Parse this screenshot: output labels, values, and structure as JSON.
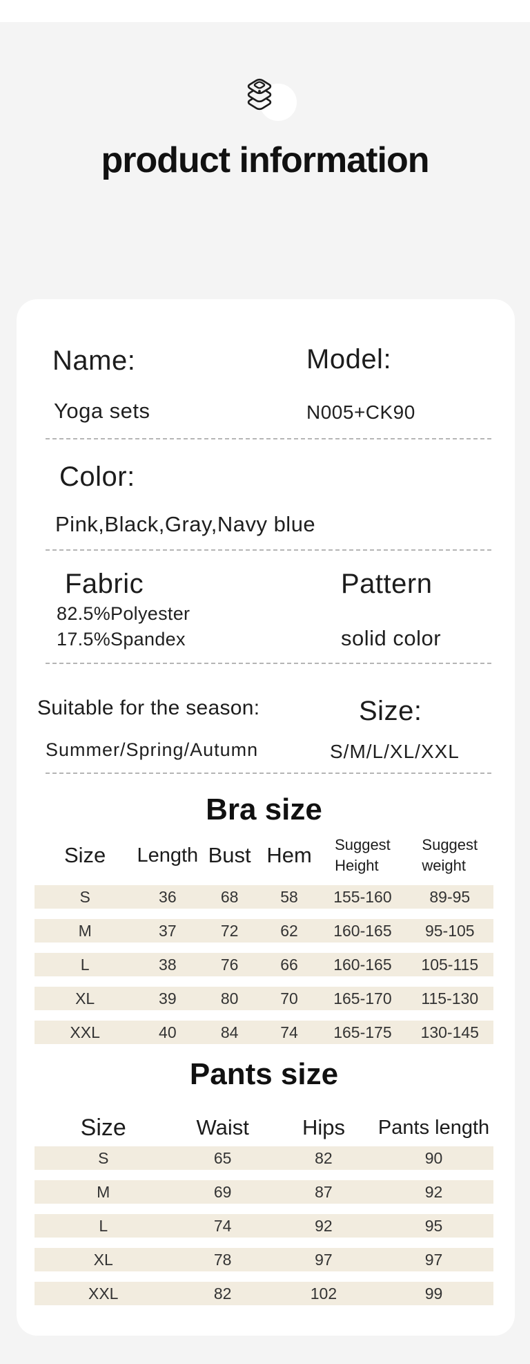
{
  "page": {
    "title": "product information"
  },
  "colors": {
    "background_gray": "#f4f4f4",
    "card_white": "#ffffff",
    "row_band_beige": "#f2ecdf",
    "text_dark": "#202020",
    "divider_gray": "#b5b5b5"
  },
  "info": {
    "name_label": "Name:",
    "name_value": "Yoga sets",
    "model_label": "Model:",
    "model_value": "N005+CK90",
    "color_label": "Color:",
    "color_value": "Pink,Black,Gray,Navy blue",
    "fabric_label": "Fabric",
    "fabric_value_1": "82.5%Polyester",
    "fabric_value_2": "17.5%Spandex",
    "pattern_label": "Pattern",
    "pattern_value": "solid color",
    "season_label": "Suitable for the season:",
    "season_value": "Summer/Spring/Autumn",
    "size_label": "Size:",
    "size_value": "S/M/L/XL/XXL"
  },
  "bra_table": {
    "title": "Bra size",
    "headers": [
      "Size",
      "Length",
      "Bust",
      "Hem",
      "Suggest\nHeight",
      "Suggest\nweight"
    ],
    "rows": [
      [
        "S",
        "36",
        "68",
        "58",
        "155-160",
        "89-95"
      ],
      [
        "M",
        "37",
        "72",
        "62",
        "160-165",
        "95-105"
      ],
      [
        "L",
        "38",
        "76",
        "66",
        "160-165",
        "105-115"
      ],
      [
        "XL",
        "39",
        "80",
        "70",
        "165-170",
        "115-130"
      ],
      [
        "XXL",
        "40",
        "84",
        "74",
        "165-175",
        "130-145"
      ]
    ]
  },
  "pants_table": {
    "title": "Pants size",
    "headers": [
      "Size",
      "Waist",
      "Hips",
      "Pants length"
    ],
    "rows": [
      [
        "S",
        "65",
        "82",
        "90"
      ],
      [
        "M",
        "69",
        "87",
        "92"
      ],
      [
        "L",
        "74",
        "92",
        "95"
      ],
      [
        "XL",
        "78",
        "97",
        "97"
      ],
      [
        "XXL",
        "82",
        "102",
        "99"
      ]
    ]
  }
}
